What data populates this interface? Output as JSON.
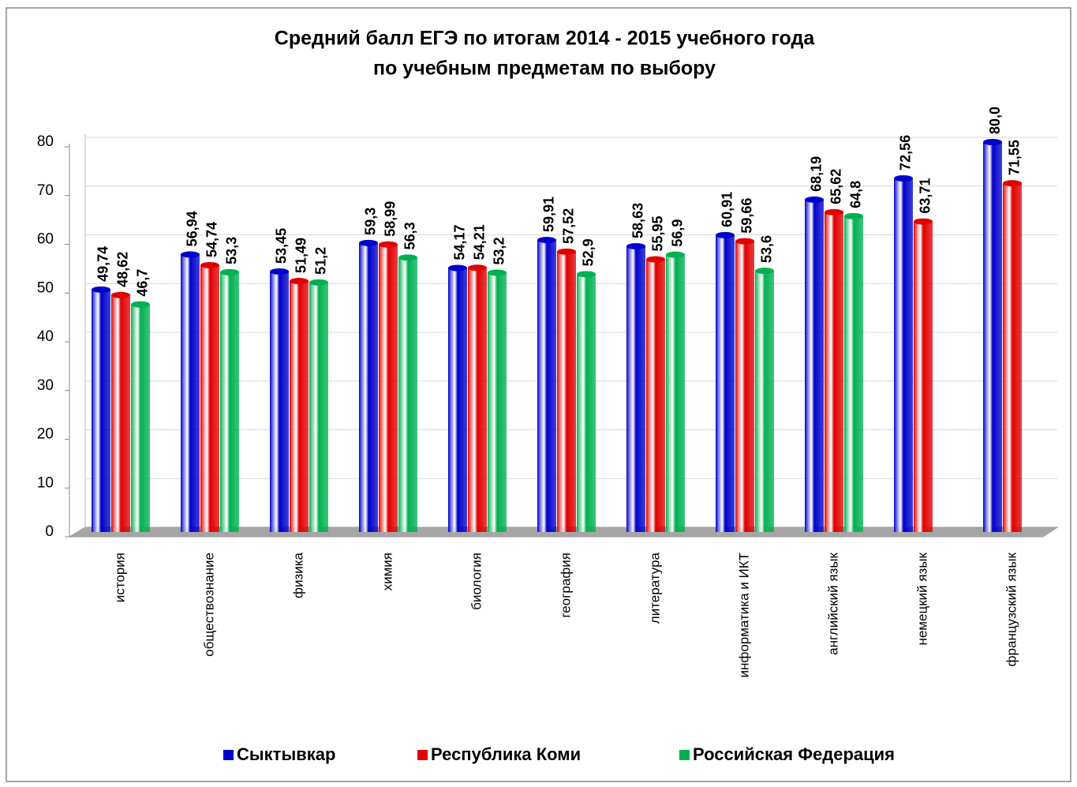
{
  "chart_data": {
    "type": "bar",
    "title": [
      "Средний балл ЕГЭ  по итогам 2014 - 2015 учебного года",
      "по учебным предметам по выбору"
    ],
    "categories": [
      "история",
      "обществознание",
      "физика",
      "химия",
      "биология",
      "география",
      "литература",
      "информатика и ИКТ",
      "английский язык",
      "немецкий язык",
      "французский язык"
    ],
    "series": [
      {
        "name": "Сыктывкар",
        "color": "#0000cc",
        "values": [
          49.74,
          56.94,
          53.45,
          59.3,
          54.17,
          59.91,
          58.63,
          60.91,
          68.19,
          72.56,
          80
        ],
        "value_labels": [
          "49,74",
          "56,94",
          "53,45",
          "59,3",
          "54,17",
          "59,91",
          "58,63",
          "60,91",
          "68,19",
          "72,56",
          "80,0"
        ]
      },
      {
        "name": "Республика Коми",
        "color": "#e00000",
        "values": [
          48.62,
          54.74,
          51.49,
          58.99,
          54.21,
          57.52,
          55.95,
          59.66,
          65.62,
          63.71,
          71.55
        ],
        "value_labels": [
          "48,62",
          "54,74",
          "51,49",
          "58,99",
          "54,21",
          "57,52",
          "55,95",
          "59,66",
          "65,62",
          "63,71",
          "71,55"
        ]
      },
      {
        "name": "Российская Федерация",
        "color": "#00b050",
        "values": [
          46.7,
          53.3,
          51.2,
          56.3,
          53.2,
          52.9,
          56.9,
          53.6,
          64.8,
          null,
          null
        ],
        "value_labels": [
          "46,7",
          "53,3",
          "51,2",
          "56,3",
          "53,2",
          "52,9",
          "56,9",
          "53,6",
          "64,8",
          null,
          null
        ]
      }
    ],
    "ylim": [
      0,
      80
    ],
    "yticks": [
      0,
      10,
      20,
      30,
      40,
      50,
      60,
      70,
      80
    ],
    "grid": true,
    "legend": "bottom"
  }
}
